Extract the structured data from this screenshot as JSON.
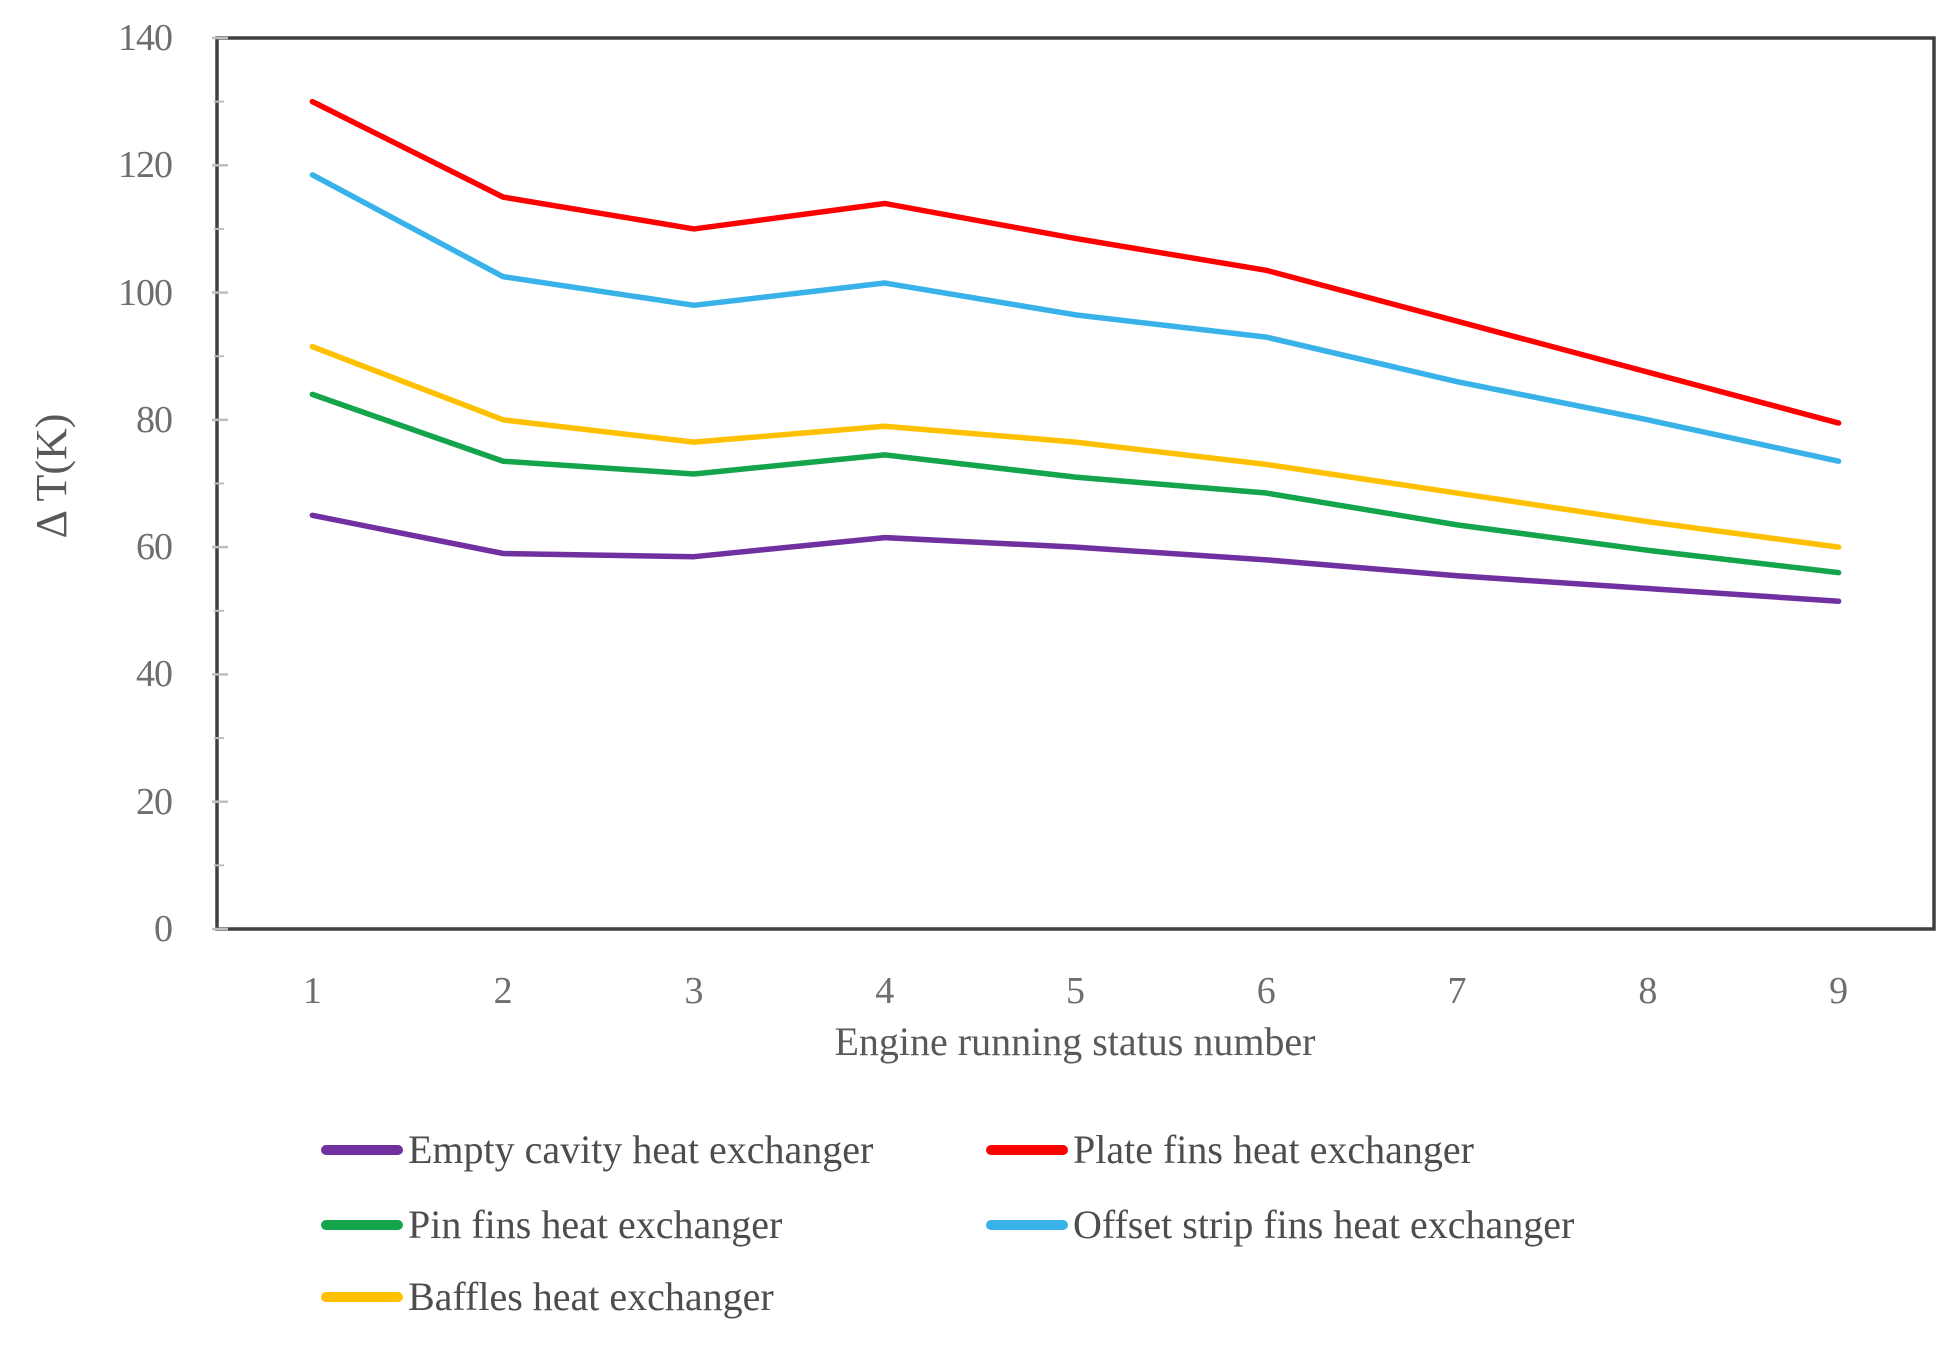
{
  "axis": {
    "y_title": "Δ T(K)",
    "x_title": "Engine running status number",
    "y_tick_labels": [
      "0",
      "20",
      "40",
      "60",
      "80",
      "100",
      "120",
      "140"
    ],
    "y_tick_values": [
      0,
      20,
      40,
      60,
      80,
      100,
      120,
      140
    ],
    "x_tick_labels": [
      "1",
      "2",
      "3",
      "4",
      "5",
      "6",
      "7",
      "8",
      "9"
    ]
  },
  "chart_data": {
    "type": "line",
    "x": [
      1,
      2,
      3,
      4,
      5,
      6,
      7,
      8,
      9
    ],
    "xlabel": "Engine running status number",
    "ylabel": "Δ T(K)",
    "ylim": [
      0,
      140
    ],
    "grid": false,
    "legend_position": "bottom",
    "series": [
      {
        "name": "Empty cavity heat exchanger",
        "color": "#7030A0",
        "values": [
          65,
          59,
          58.5,
          61.5,
          60,
          58,
          55.5,
          53.5,
          51.5
        ]
      },
      {
        "name": "Plate fins heat exchanger",
        "color": "#FF0000",
        "values": [
          130,
          115,
          110,
          114,
          108.5,
          103.5,
          95.5,
          87.5,
          79.5
        ]
      },
      {
        "name": "Pin fins heat exchanger",
        "color": "#14A44B",
        "values": [
          84,
          73.5,
          71.5,
          74.5,
          71,
          68.5,
          63.5,
          59.5,
          56
        ]
      },
      {
        "name": "Offset strip fins heat exchanger",
        "color": "#38B2E8",
        "values": [
          118.5,
          102.5,
          98,
          101.5,
          96.5,
          93,
          86,
          80,
          73.5
        ]
      },
      {
        "name": "Baffles heat exchanger",
        "color": "#FFC000",
        "values": [
          91.5,
          80,
          76.5,
          79,
          76.5,
          73,
          68.5,
          64,
          60
        ]
      }
    ]
  },
  "legend": {
    "items": [
      {
        "label": "Empty cavity heat exchanger",
        "series": 0
      },
      {
        "label": "Plate fins heat exchanger",
        "series": 1
      },
      {
        "label": "Pin fins heat exchanger",
        "series": 2
      },
      {
        "label": "Offset strip fins heat exchanger",
        "series": 3
      },
      {
        "label": "Baffles heat exchanger",
        "series": 4
      }
    ]
  },
  "colors": {
    "frame": "#3f3f3f",
    "tick": "#bfbfbf",
    "tick_text": "#6e6e6e",
    "title_text": "#595959",
    "legend_text": "#4d4d4d"
  }
}
